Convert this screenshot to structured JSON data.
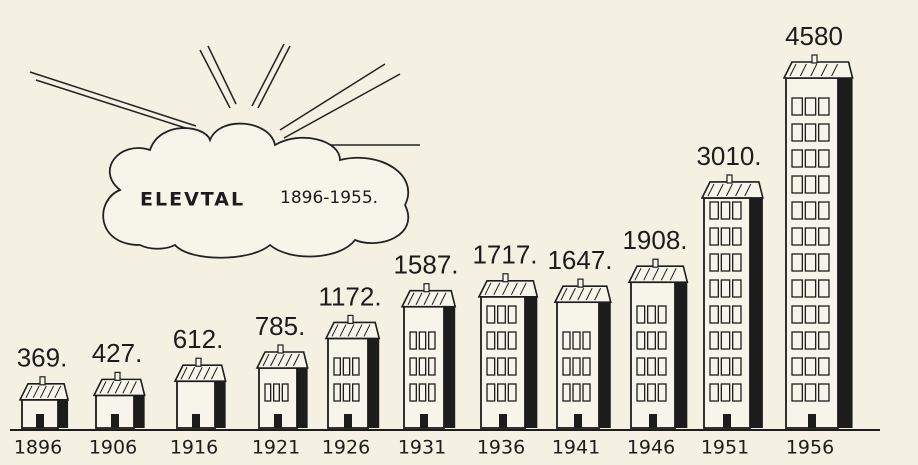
{
  "chart_data": {
    "type": "pictogram",
    "title": "ELEVTAL",
    "subtitle": "1896-1955.",
    "categories": [
      "1896",
      "1906",
      "1916",
      "1921",
      "1926",
      "1931",
      "1936",
      "1941",
      "1946",
      "1951",
      "1956"
    ],
    "values": [
      369,
      427,
      612,
      785,
      1172,
      1587,
      1717,
      1647,
      1908,
      3010,
      4580
    ],
    "value_labels": [
      "369.",
      "427.",
      "612.",
      "785.",
      "1172.",
      "1587.",
      "1717.",
      "1647.",
      "1908.",
      "3010.",
      "4580"
    ],
    "color": "#1c1c1c"
  }
}
